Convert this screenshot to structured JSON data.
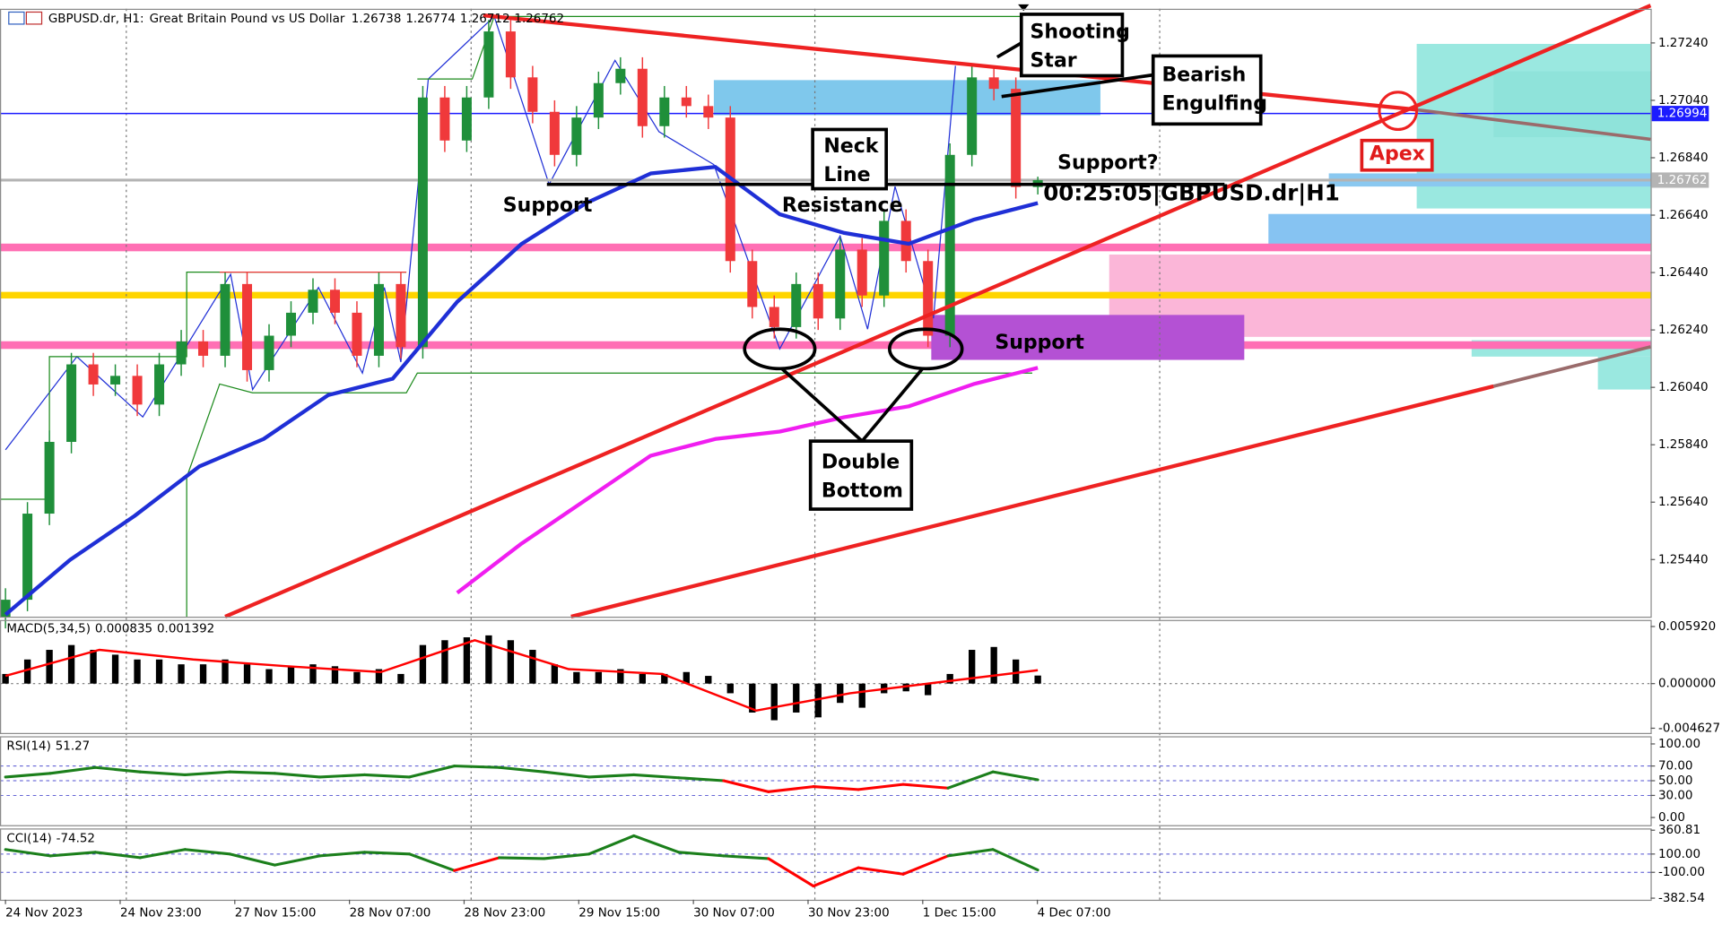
{
  "chart_data": {
    "type": "candlestick",
    "symbol": "GBPUSD.dr, H1:",
    "description": "Great Britain Pound vs US Dollar",
    "up_color": "#1f8f3a",
    "down_color": "#f0393b",
    "candles": [
      [
        1.2524,
        1.2534,
        1.252,
        1.253
      ],
      [
        1.253,
        1.2564,
        1.2526,
        1.256
      ],
      [
        1.256,
        1.2589,
        1.2556,
        1.2585
      ],
      [
        1.2585,
        1.2616,
        1.2581,
        1.2612
      ],
      [
        1.2612,
        1.2616,
        1.2601,
        1.2605
      ],
      [
        1.2605,
        1.2612,
        1.2601,
        1.2608
      ],
      [
        1.2608,
        1.2612,
        1.2594,
        1.2598
      ],
      [
        1.2598,
        1.2616,
        1.2594,
        1.2612
      ],
      [
        1.2612,
        1.2624,
        1.2608,
        1.262
      ],
      [
        1.262,
        1.2624,
        1.2611,
        1.2615
      ],
      [
        1.2615,
        1.2644,
        1.2611,
        1.264
      ],
      [
        1.264,
        1.2644,
        1.2606,
        1.261
      ],
      [
        1.261,
        1.2626,
        1.2606,
        1.2622
      ],
      [
        1.2622,
        1.2634,
        1.2618,
        1.263
      ],
      [
        1.263,
        1.2642,
        1.2626,
        1.2638
      ],
      [
        1.2638,
        1.2642,
        1.2626,
        1.263
      ],
      [
        1.263,
        1.2634,
        1.2611,
        1.2615
      ],
      [
        1.2615,
        1.2644,
        1.2611,
        1.264
      ],
      [
        1.264,
        1.2644,
        1.2614,
        1.2618
      ],
      [
        1.2618,
        1.2709,
        1.2614,
        1.2705
      ],
      [
        1.2705,
        1.2709,
        1.2686,
        1.269
      ],
      [
        1.269,
        1.2709,
        1.2686,
        1.2705
      ],
      [
        1.2705,
        1.2732,
        1.2701,
        1.2728
      ],
      [
        1.2728,
        1.2732,
        1.2708,
        1.2712
      ],
      [
        1.2712,
        1.2716,
        1.2696,
        1.27
      ],
      [
        1.27,
        1.2704,
        1.2681,
        1.2685
      ],
      [
        1.2685,
        1.2702,
        1.2681,
        1.2698
      ],
      [
        1.2698,
        1.2714,
        1.2694,
        1.271
      ],
      [
        1.271,
        1.2719,
        1.2706,
        1.2715
      ],
      [
        1.2715,
        1.2719,
        1.2691,
        1.2695
      ],
      [
        1.2695,
        1.2709,
        1.2691,
        1.2705
      ],
      [
        1.2705,
        1.2709,
        1.2698,
        1.2702
      ],
      [
        1.2702,
        1.2706,
        1.2694,
        1.2698
      ],
      [
        1.2698,
        1.2702,
        1.2644,
        1.2648
      ],
      [
        1.2648,
        1.2652,
        1.2628,
        1.2632
      ],
      [
        1.2632,
        1.2636,
        1.2621,
        1.2625
      ],
      [
        1.2625,
        1.2644,
        1.2621,
        1.264
      ],
      [
        1.264,
        1.2644,
        1.2624,
        1.2628
      ],
      [
        1.2628,
        1.2656,
        1.2624,
        1.2652
      ],
      [
        1.2652,
        1.2656,
        1.2632,
        1.2636
      ],
      [
        1.2636,
        1.2666,
        1.2632,
        1.2662
      ],
      [
        1.2662,
        1.2666,
        1.2644,
        1.2648
      ],
      [
        1.2648,
        1.2652,
        1.2618,
        1.2622
      ],
      [
        1.2622,
        1.2689,
        1.2618,
        1.2685
      ],
      [
        1.2685,
        1.2716,
        1.2681,
        1.2712
      ],
      [
        1.2712,
        1.2716,
        1.2704,
        1.2708
      ],
      [
        1.2708,
        1.2712,
        1.26698,
        1.26738
      ],
      [
        1.26738,
        1.26774,
        1.26712,
        1.26762
      ]
    ],
    "x_labels": [
      "24 Nov 2023",
      "24 Nov 23:00",
      "27 Nov 15:00",
      "28 Nov 07:00",
      "28 Nov 23:00",
      "29 Nov 15:00",
      "30 Nov 07:00",
      "30 Nov 23:00",
      "1 Dec 15:00",
      "4 Dec 07:00"
    ],
    "ylim": [
      1.25241,
      1.27359
    ],
    "yticks": [
      {
        "value": 1.2724,
        "label": "1.27240"
      },
      {
        "value": 1.2704,
        "label": "1.27040"
      },
      {
        "value": 1.2684,
        "label": "1.26840"
      },
      {
        "value": 1.2664,
        "label": "1.26640"
      },
      {
        "value": 1.2644,
        "label": "1.26440"
      },
      {
        "value": 1.2624,
        "label": "1.26240"
      },
      {
        "value": 1.2604,
        "label": "1.26040"
      },
      {
        "value": 1.2584,
        "label": "1.25840"
      },
      {
        "value": 1.2564,
        "label": "1.25640"
      },
      {
        "value": 1.2544,
        "label": "1.25440"
      }
    ],
    "moving_averages": [
      {
        "color": "#1f2fd6",
        "values": [
          1.25248,
          1.25439,
          1.25592,
          1.25764,
          1.2586,
          1.26013,
          1.2607,
          1.26338,
          1.2654,
          1.26682,
          1.26785,
          1.26808,
          1.26643,
          1.26578,
          1.2654,
          1.26624,
          1.26682
        ]
      },
      {
        "color": "#f01ef0",
        "values": [
          null,
          null,
          null,
          null,
          null,
          null,
          null,
          1.25324,
          1.25496,
          1.25649,
          1.25802,
          1.2586,
          1.25886,
          1.25936,
          1.25974,
          1.26051,
          1.26108
        ]
      }
    ],
    "levels": [
      {
        "value": 1.26994,
        "color": "#1c1cff"
      }
    ],
    "last_price_color": "#b4b4b4",
    "annotations": [
      {
        "lines": [
          "Shooting",
          "Star"
        ]
      },
      {
        "lines": [
          "Bearish",
          "Engulfing"
        ]
      },
      {
        "lines": [
          "Neck",
          "Line"
        ]
      },
      {
        "lines": [
          "Support"
        ]
      },
      {
        "lines": [
          "Resistance"
        ]
      },
      {
        "lines": [
          "Support?"
        ]
      },
      {
        "lines": [
          "00:25:05|GBPUSD.dr|H1"
        ]
      },
      {
        "lines": [
          "Double",
          "Bottom"
        ]
      },
      {
        "lines": [
          "Support"
        ]
      },
      {
        "lines": [
          "Apex"
        ]
      }
    ],
    "macd": {
      "label": "MACD(5,34,5)",
      "histogram": [
        0.001,
        0.0025,
        0.0035,
        0.004,
        0.0035,
        0.003,
        0.0025,
        0.0025,
        0.002,
        0.002,
        0.0025,
        0.002,
        0.0015,
        0.0018,
        0.002,
        0.0018,
        0.0012,
        0.0015,
        0.001,
        0.004,
        0.0045,
        0.0048,
        0.005,
        0.0045,
        0.0035,
        0.002,
        0.0012,
        0.0012,
        0.0015,
        0.001,
        0.001,
        0.0012,
        0.0008,
        -0.001,
        -0.003,
        -0.0038,
        -0.003,
        -0.0035,
        -0.002,
        -0.0025,
        -0.001,
        -0.0008,
        -0.0012,
        0.001,
        0.0035,
        0.0038,
        0.0025,
        0.000835
      ],
      "signal": [
        0.0008,
        0.0035,
        0.0025,
        0.0018,
        0.0012,
        0.0045,
        0.0015,
        0.001,
        -0.0028,
        -0.001,
        0.0002,
        0.001392
      ],
      "signal_color": "#ff0000",
      "ylim": [
        -0.00512,
        0.0066
      ],
      "yticks": [
        {
          "value": 0.00592,
          "label": "0.005920"
        },
        {
          "value": 0,
          "label": "0.000000"
        },
        {
          "value": -0.004627,
          "label": "-0.004627"
        }
      ]
    },
    "rsi": {
      "label": "RSI(14)",
      "values": [
        55,
        60,
        68,
        62,
        58,
        62,
        60,
        55,
        58,
        55,
        70,
        68,
        62,
        55,
        58,
        54,
        50,
        35,
        42,
        38,
        45,
        40,
        62,
        51.27
      ],
      "threshold": 50,
      "above_color": "#1b7f1b",
      "below_color": "#ff0000",
      "ylim": [
        -10.4,
        110.4
      ],
      "yticks": [
        {
          "value": 100,
          "label": "100.00"
        },
        {
          "value": 70,
          "label": "70.00"
        },
        {
          "value": 50,
          "label": "50.00"
        },
        {
          "value": 30,
          "label": "30.00"
        },
        {
          "value": 0,
          "label": "0.00"
        }
      ],
      "grid_levels": [
        70,
        50,
        30
      ]
    },
    "cci": {
      "label": "CCI(14)",
      "values": [
        150,
        80,
        120,
        60,
        150,
        100,
        -20,
        80,
        120,
        100,
        -80,
        60,
        50,
        100,
        300,
        120,
        80,
        50,
        -250,
        -50,
        -120,
        80,
        150,
        -74.52
      ],
      "threshold": 0,
      "above_color": "#1b7f1b",
      "below_color": "#ff0000",
      "ylim": [
        -400,
        380
      ],
      "yticks": [
        360.81,
        {
          "value": 100,
          "label": "100.00"
        },
        {
          "value": -100,
          "label": "-100.00"
        },
        -382.54
      ],
      "grid_levels": [
        100,
        -100
      ]
    }
  }
}
